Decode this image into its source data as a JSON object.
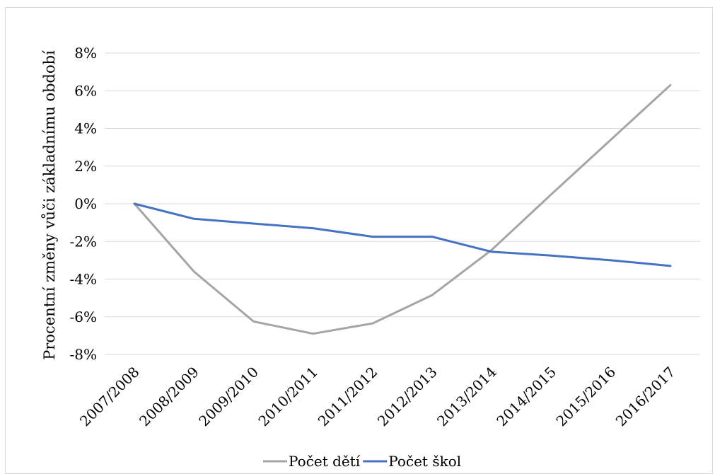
{
  "chart_data": {
    "type": "line",
    "title": "",
    "ylabel": "Procentní změny vůči základnímu období",
    "xlabel": "",
    "categories": [
      "2007/2008",
      "2008/2009",
      "2009/2010",
      "2010/2011",
      "2011/2012",
      "2012/2013",
      "2013/2014",
      "2014/2015",
      "2015/2016",
      "2016/2017"
    ],
    "ylim": [
      -8,
      8
    ],
    "yticks": [
      -8,
      -6,
      -4,
      -2,
      0,
      2,
      4,
      6,
      8
    ],
    "ytick_labels": [
      "-8%",
      "-6%",
      "-4%",
      "-2%",
      "0%",
      "2%",
      "4%",
      "6%",
      "8%"
    ],
    "grid": true,
    "legend_position": "bottom",
    "series": [
      {
        "name": "Počet dětí",
        "color": "#a5a5a5",
        "values": [
          0,
          -3.6,
          -6.25,
          -6.9,
          -6.35,
          -4.85,
          -2.45,
          0.5,
          3.4,
          6.3
        ]
      },
      {
        "name": "Počet škol",
        "color": "#4472c4",
        "values": [
          0,
          -0.8,
          -1.05,
          -1.3,
          -1.75,
          -1.75,
          -2.55,
          -2.75,
          -3.0,
          -3.3
        ]
      }
    ]
  }
}
